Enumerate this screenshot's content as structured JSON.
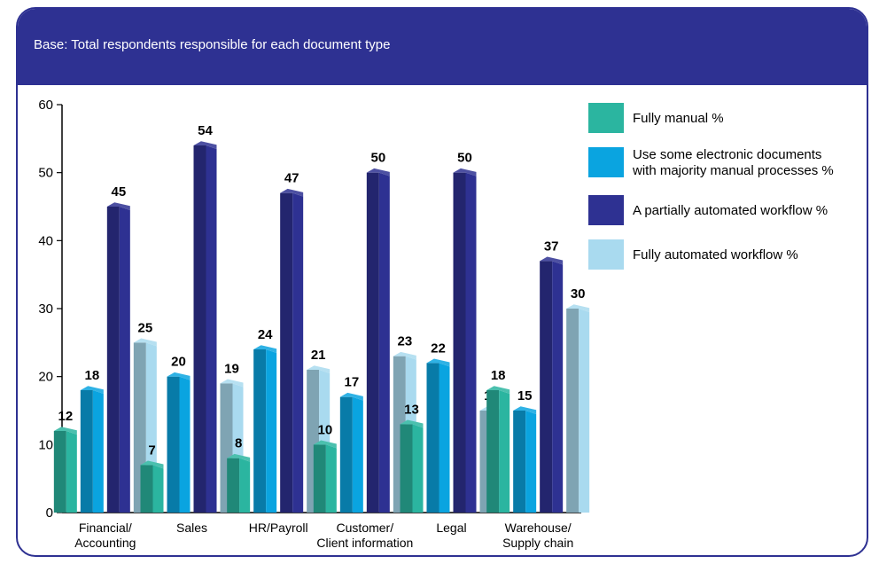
{
  "subtitle": "Base: Total respondents responsible for each document type",
  "chart_data": {
    "type": "bar",
    "categories": [
      [
        "Financial/",
        "Accounting"
      ],
      [
        "Sales"
      ],
      [
        "HR/Payroll"
      ],
      [
        "Customer/",
        "Client information"
      ],
      [
        "Legal"
      ],
      [
        "Warehouse/",
        "Supply chain"
      ]
    ],
    "series": [
      {
        "name": [
          "Fully manual %"
        ],
        "values": [
          12,
          7,
          8,
          10,
          13,
          18
        ],
        "color": "#2bb5a0"
      },
      {
        "name": [
          "Use some electronic documents",
          "with majority manual processes %"
        ],
        "values": [
          18,
          20,
          24,
          17,
          22,
          15
        ],
        "color": "#0aa4e0"
      },
      {
        "name": [
          "A partially automated workflow %"
        ],
        "values": [
          45,
          54,
          47,
          50,
          50,
          37
        ],
        "color": "#2e3192"
      },
      {
        "name": [
          "Fully automated workflow %"
        ],
        "values": [
          25,
          19,
          21,
          23,
          15,
          30
        ],
        "color": "#a9daef"
      }
    ],
    "ylim": [
      0,
      60
    ],
    "yticks": [
      0,
      10,
      20,
      30,
      40,
      50,
      60
    ],
    "grid": false,
    "legend_position": "right"
  }
}
